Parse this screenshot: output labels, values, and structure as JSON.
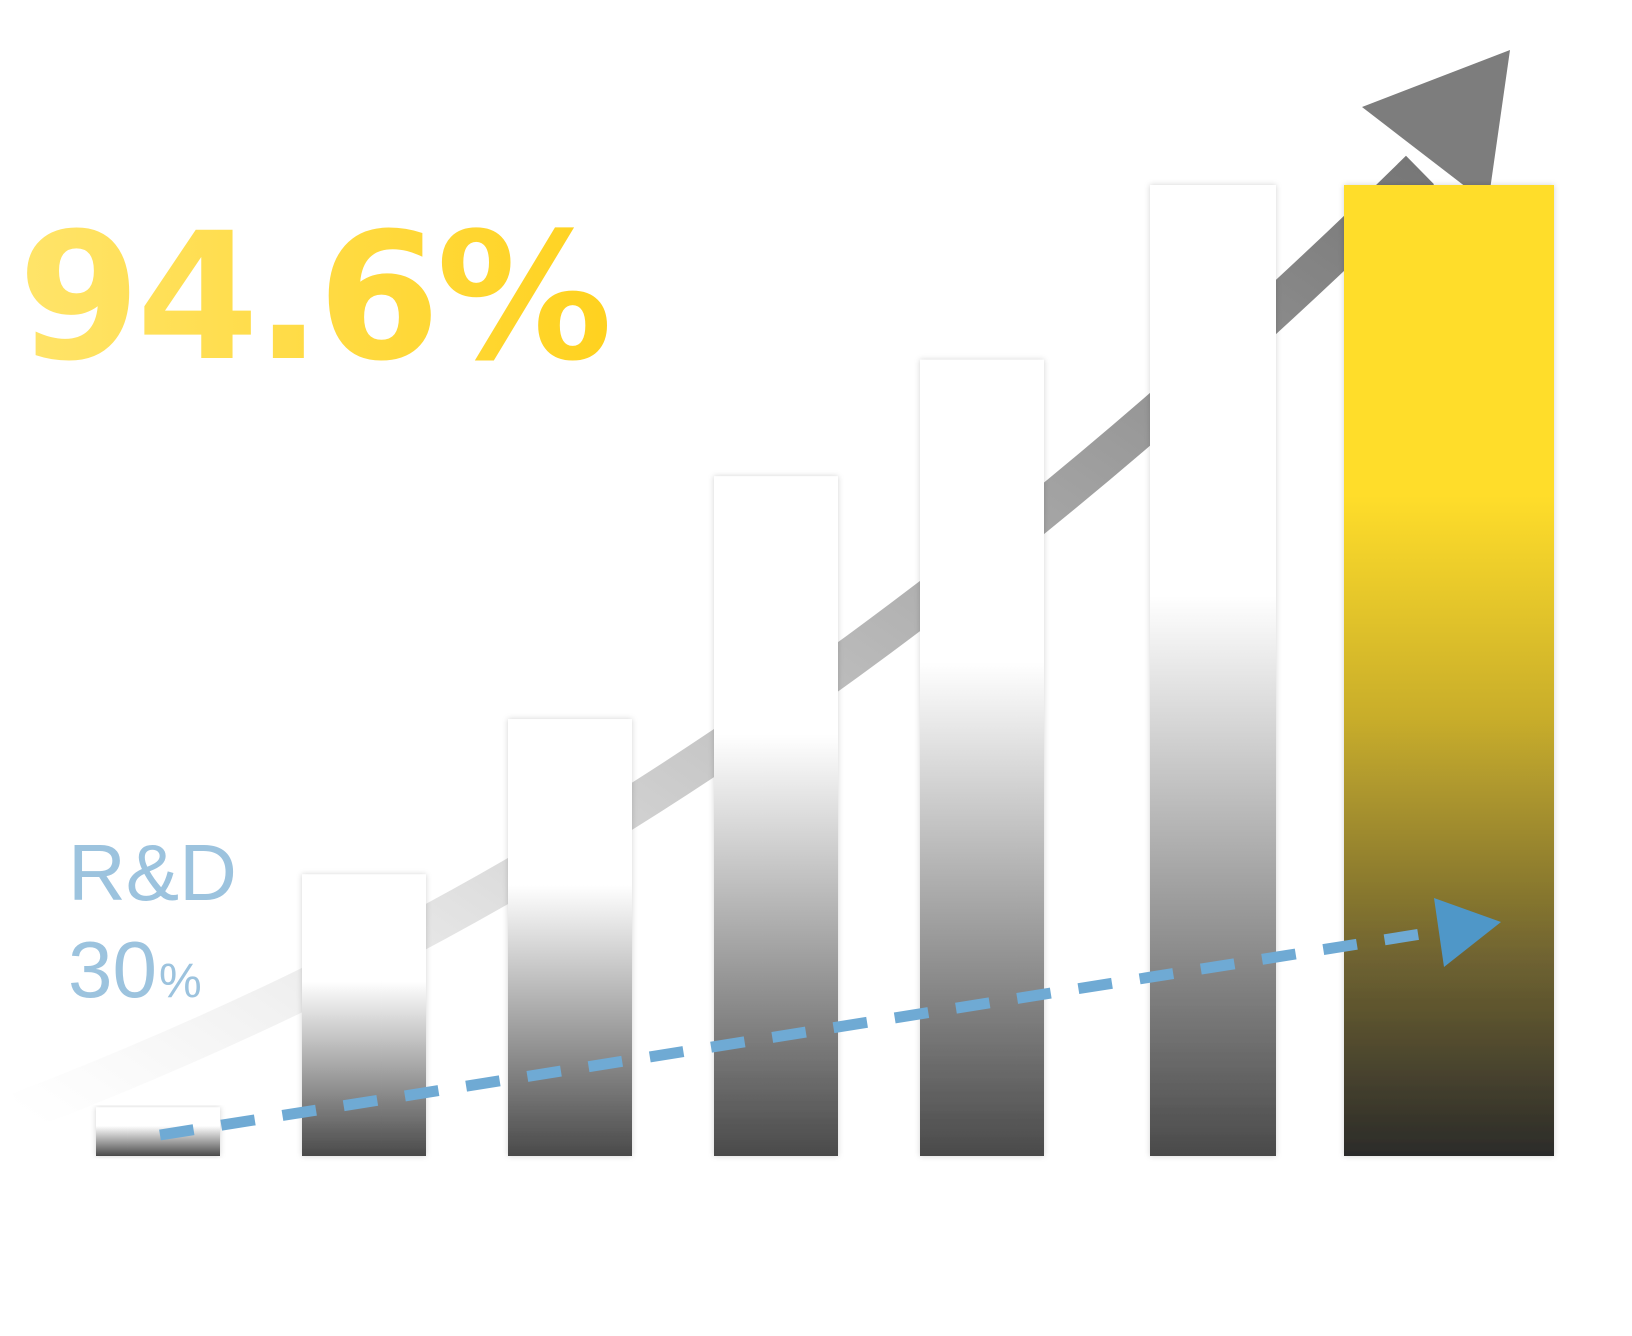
{
  "headline": {
    "value": "94.6%"
  },
  "rd": {
    "label": "R&D",
    "value": "30",
    "unit": "%"
  },
  "colors": {
    "headline_start": "#ffe46a",
    "headline_end": "#ffd21f",
    "rd_text": "#9cc3de",
    "rd_arrow": "#4f97c8",
    "trend_arrow": "#7d7d7d",
    "highlight_bar_top": "#ffdd2b",
    "highlight_bar_bottom": "#2b2b2b",
    "bar_bottom": "#4a4a4a"
  },
  "chart_data": {
    "type": "bar",
    "values": [
      5,
      29,
      45,
      70,
      82,
      100,
      100
    ],
    "highlight_index": 6,
    "ylim": [
      0,
      100
    ],
    "trend": "up",
    "rd_trend": "up",
    "grid": false,
    "axes": false
  }
}
